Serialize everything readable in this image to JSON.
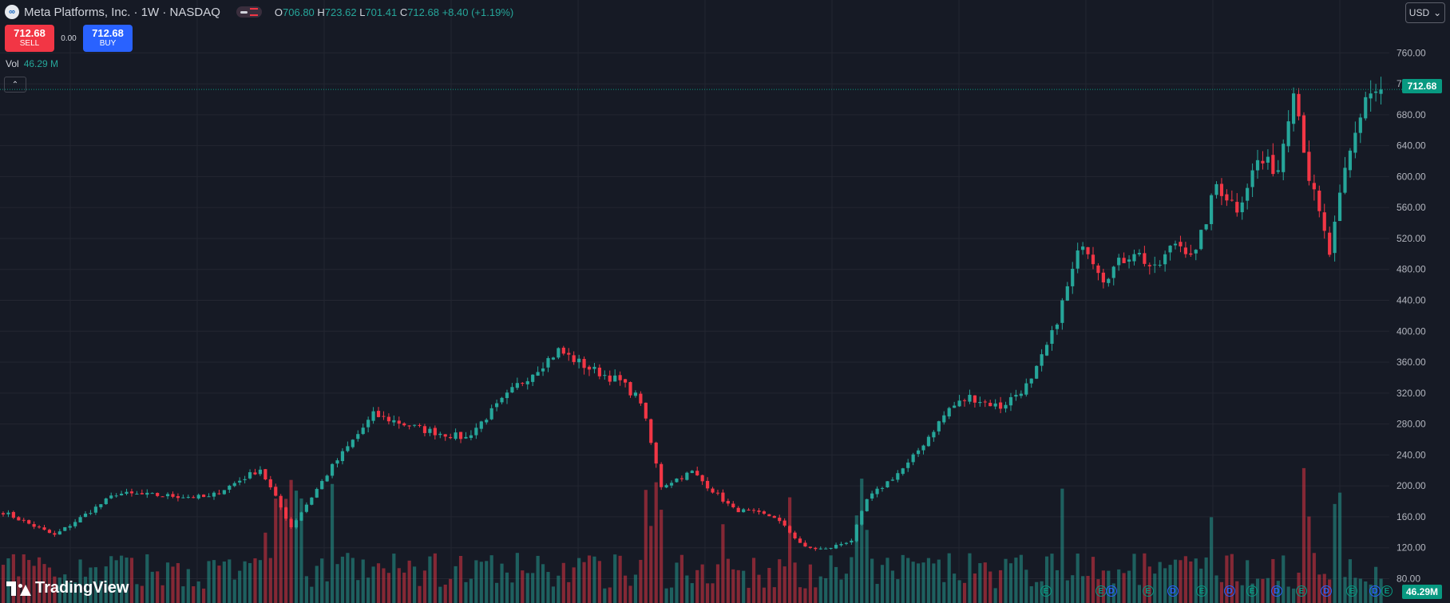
{
  "header": {
    "logo_icon": "meta-logo-icon",
    "logo_glyph": "∞",
    "symbol_title": "Meta Platforms, Inc. · 1W · NASDAQ",
    "ohlc": {
      "o_key": "O",
      "o_val": "706.80",
      "h_key": "H",
      "h_val": "723.62",
      "l_key": "L",
      "l_val": "701.41",
      "c_key": "C",
      "c_val": "712.68",
      "change": "+8.40 (+1.19%)"
    }
  },
  "trade": {
    "sell_price": "712.68",
    "sell_label": "SELL",
    "spread": "0.00",
    "buy_price": "712.68",
    "buy_label": "BUY"
  },
  "volume_legend": {
    "label": "Vol",
    "value": "46.29 M"
  },
  "collapse_glyph": "⌃",
  "currency": {
    "value": "USD",
    "chevron": "⌄"
  },
  "last_price_label": "712.68",
  "volume_axis_label": "46.29M",
  "branding": {
    "wordmark": "TradingView"
  },
  "colors": {
    "background": "#161a25",
    "up": "#26a69a",
    "down": "#f23645",
    "grid": "#232631",
    "axis_text": "#b2b5be",
    "price_line": "#089981"
  },
  "chart_data": {
    "type": "candlestick",
    "symbol": "Meta Platforms, Inc.",
    "interval": "1W",
    "y_ticks": [
      "80.00",
      "120.00",
      "160.00",
      "200.00",
      "240.00",
      "280.00",
      "320.00",
      "360.00",
      "400.00",
      "440.00",
      "480.00",
      "520.00",
      "560.00",
      "600.00",
      "640.00",
      "680.00",
      "720.00",
      "760.00"
    ],
    "ylim": [
      64,
      783
    ],
    "last_price": 712.68,
    "grid": true,
    "key_points": [
      {
        "i": 0,
        "p": 166
      },
      {
        "i": 10,
        "p": 136
      },
      {
        "i": 22,
        "p": 190
      },
      {
        "i": 40,
        "p": 185
      },
      {
        "i": 50,
        "p": 222
      },
      {
        "i": 56,
        "p": 147
      },
      {
        "i": 64,
        "p": 225
      },
      {
        "i": 72,
        "p": 292
      },
      {
        "i": 82,
        "p": 272
      },
      {
        "i": 90,
        "p": 262
      },
      {
        "i": 100,
        "p": 330
      },
      {
        "i": 108,
        "p": 375
      },
      {
        "i": 114,
        "p": 352
      },
      {
        "i": 120,
        "p": 335
      },
      {
        "i": 124,
        "p": 310
      },
      {
        "i": 128,
        "p": 200
      },
      {
        "i": 134,
        "p": 218
      },
      {
        "i": 142,
        "p": 170
      },
      {
        "i": 150,
        "p": 160
      },
      {
        "i": 156,
        "p": 120
      },
      {
        "i": 160,
        "p": 118
      },
      {
        "i": 165,
        "p": 130
      },
      {
        "i": 168,
        "p": 182
      },
      {
        "i": 176,
        "p": 228
      },
      {
        "i": 184,
        "p": 300
      },
      {
        "i": 188,
        "p": 315
      },
      {
        "i": 194,
        "p": 302
      },
      {
        "i": 200,
        "p": 335
      },
      {
        "i": 204,
        "p": 395
      },
      {
        "i": 210,
        "p": 518
      },
      {
        "i": 214,
        "p": 470
      },
      {
        "i": 220,
        "p": 505
      },
      {
        "i": 224,
        "p": 478
      },
      {
        "i": 228,
        "p": 515
      },
      {
        "i": 232,
        "p": 500
      },
      {
        "i": 236,
        "p": 590
      },
      {
        "i": 240,
        "p": 560
      },
      {
        "i": 244,
        "p": 620
      },
      {
        "i": 248,
        "p": 610
      },
      {
        "i": 251,
        "p": 720
      },
      {
        "i": 254,
        "p": 600
      },
      {
        "i": 258,
        "p": 500
      },
      {
        "i": 261,
        "p": 605
      },
      {
        "i": 265,
        "p": 705
      },
      {
        "i": 268,
        "p": 712.68
      }
    ],
    "events": [
      {
        "type": "E",
        "label": "E"
      },
      {
        "type": "E",
        "label": "E"
      },
      {
        "type": "D",
        "label": "D"
      },
      {
        "type": "E",
        "label": "E"
      },
      {
        "type": "D",
        "label": "D"
      },
      {
        "type": "E",
        "label": "E"
      },
      {
        "type": "D",
        "label": "D"
      },
      {
        "type": "E",
        "label": "E"
      },
      {
        "type": "D",
        "label": "D"
      },
      {
        "type": "E",
        "label": "E"
      },
      {
        "type": "D",
        "label": "D"
      },
      {
        "type": "E",
        "label": "E"
      },
      {
        "type": "D",
        "label": "D"
      },
      {
        "type": "E",
        "label": "E"
      },
      {
        "type": "D",
        "label": "D"
      },
      {
        "type": "E",
        "label": "E"
      },
      {
        "type": "D",
        "label": "D"
      },
      {
        "type": "E",
        "label": "E"
      }
    ]
  }
}
